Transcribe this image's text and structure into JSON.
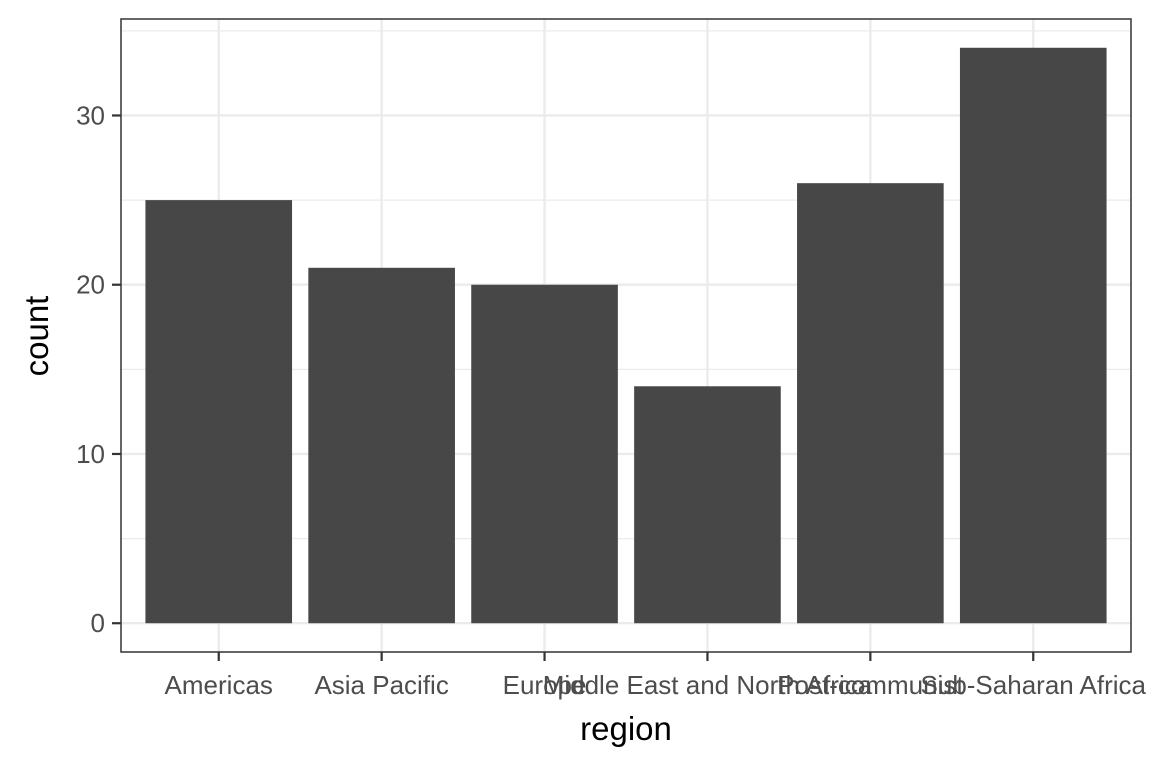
{
  "chart_data": {
    "type": "bar",
    "title": "",
    "xlabel": "region",
    "ylabel": "count",
    "categories": [
      "Americas",
      "Asia Pacific",
      "Europe",
      "Middle East and North Africa",
      "Post-communist",
      "Sub-Saharan Africa"
    ],
    "values": [
      25,
      21,
      20,
      14,
      26,
      34
    ],
    "ylim": [
      -1.7,
      35.7
    ],
    "yticks": [
      0,
      10,
      20,
      30
    ],
    "grid": true,
    "legend": "none",
    "colors": {
      "bar": "#474747",
      "grid": "#ebebeb",
      "panel_border": "#333333",
      "tick_label": "#4d4d4d"
    }
  }
}
